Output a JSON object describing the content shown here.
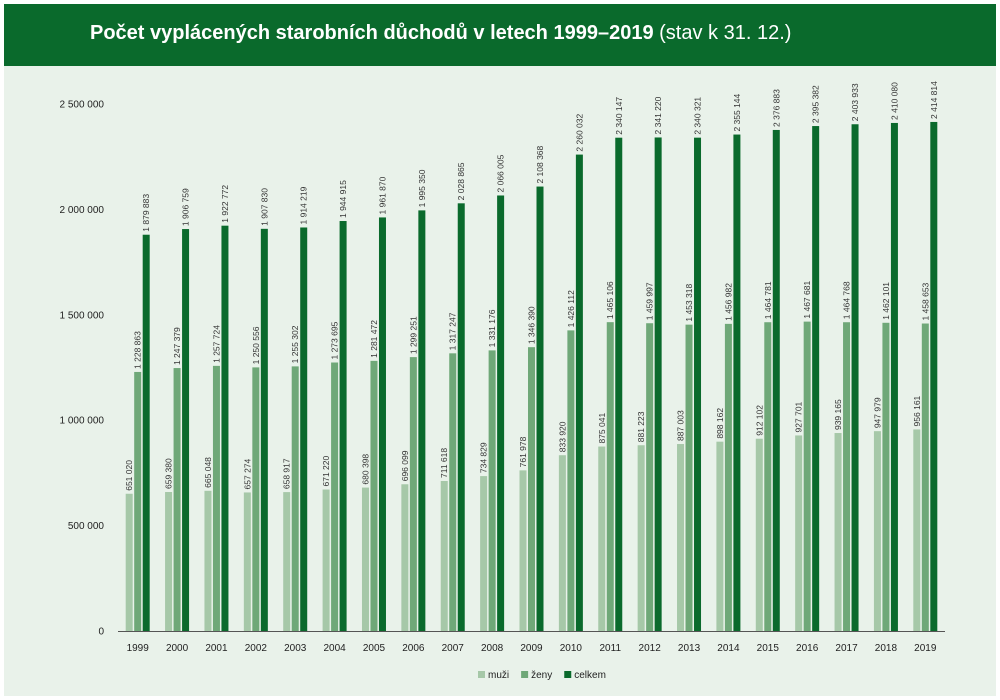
{
  "header": {
    "title": "Počet vyplácených starobních důchodů v letech 1999–2019",
    "subtitle": "(stav k 31. 12.)"
  },
  "colors": {
    "header_bg": "#0a6a2c",
    "plot_bg": "#e9f2ea",
    "muzi": "#a6c8a8",
    "zeny": "#6fa878",
    "celkem": "#0a6a2c"
  },
  "chart_data": {
    "type": "bar",
    "title": "Počet vyplácených starobních důchodů v letech 1999–2019 (stav k 31. 12.)",
    "xlabel": "",
    "ylabel": "",
    "ylim": [
      0,
      2500000
    ],
    "yticks": [
      0,
      500000,
      1000000,
      1500000,
      2000000,
      2500000
    ],
    "ytick_labels": [
      "0",
      "500 000",
      "1 000 000",
      "1 500 000",
      "2 000 000",
      "2 500 000"
    ],
    "legend_position": "bottom-center",
    "categories": [
      "1999",
      "2000",
      "2001",
      "2002",
      "2003",
      "2004",
      "2005",
      "2006",
      "2007",
      "2008",
      "2009",
      "2010",
      "2011",
      "2012",
      "2013",
      "2014",
      "2015",
      "2016",
      "2017",
      "2018",
      "2019"
    ],
    "series": [
      {
        "name": "muži",
        "color": "#a6c8a8",
        "values": [
          651020,
          659380,
          665048,
          657274,
          658917,
          671220,
          680398,
          696099,
          711618,
          734829,
          761978,
          833920,
          875041,
          881223,
          887003,
          898162,
          912102,
          927701,
          939165,
          947979,
          956161
        ],
        "labels": [
          "651 020",
          "659 380",
          "665 048",
          "657 274",
          "658 917",
          "671 220",
          "680 398",
          "696 099",
          "711 618",
          "734 829",
          "761 978",
          "833 920",
          "875 041",
          "881 223",
          "887 003",
          "898 162",
          "912 102",
          "927 701",
          "939 165",
          "947 979",
          "956 161"
        ]
      },
      {
        "name": "ženy",
        "color": "#6fa878",
        "values": [
          1228863,
          1247379,
          1257724,
          1250556,
          1255302,
          1273695,
          1281472,
          1299251,
          1317247,
          1331176,
          1346390,
          1426112,
          1465106,
          1459997,
          1453318,
          1456982,
          1464781,
          1467681,
          1464768,
          1462101,
          1458653
        ],
        "labels": [
          "1 228 863",
          "1 247 379",
          "1 257 724",
          "1 250 556",
          "1 255 302",
          "1 273 695",
          "1 281 472",
          "1 299 251",
          "1 317 247",
          "1 331 176",
          "1 346 390",
          "1 426 112",
          "1 465 106",
          "1 459 997",
          "1 453 318",
          "1 456 982",
          "1 464 781",
          "1 467 681",
          "1 464 768",
          "1 462 101",
          "1 458 653"
        ]
      },
      {
        "name": "celkem",
        "color": "#0a6a2c",
        "values": [
          1879883,
          1906759,
          1922772,
          1907830,
          1914219,
          1944915,
          1961870,
          1995350,
          2028865,
          2066005,
          2108368,
          2260032,
          2340147,
          2341220,
          2340321,
          2355144,
          2376883,
          2395382,
          2403933,
          2410080,
          2414814
        ],
        "labels": [
          "1 879 883",
          "1 906 759",
          "1 922 772",
          "1 907 830",
          "1 914 219",
          "1 944 915",
          "1 961 870",
          "1 995 350",
          "2 028 865",
          "2 066 005",
          "2 108 368",
          "2 260 032",
          "2 340 147",
          "2 341 220",
          "2 340 321",
          "2 355 144",
          "2 376 883",
          "2 395 382",
          "2 403 933",
          "2 410 080",
          "2 414 814"
        ]
      }
    ]
  }
}
